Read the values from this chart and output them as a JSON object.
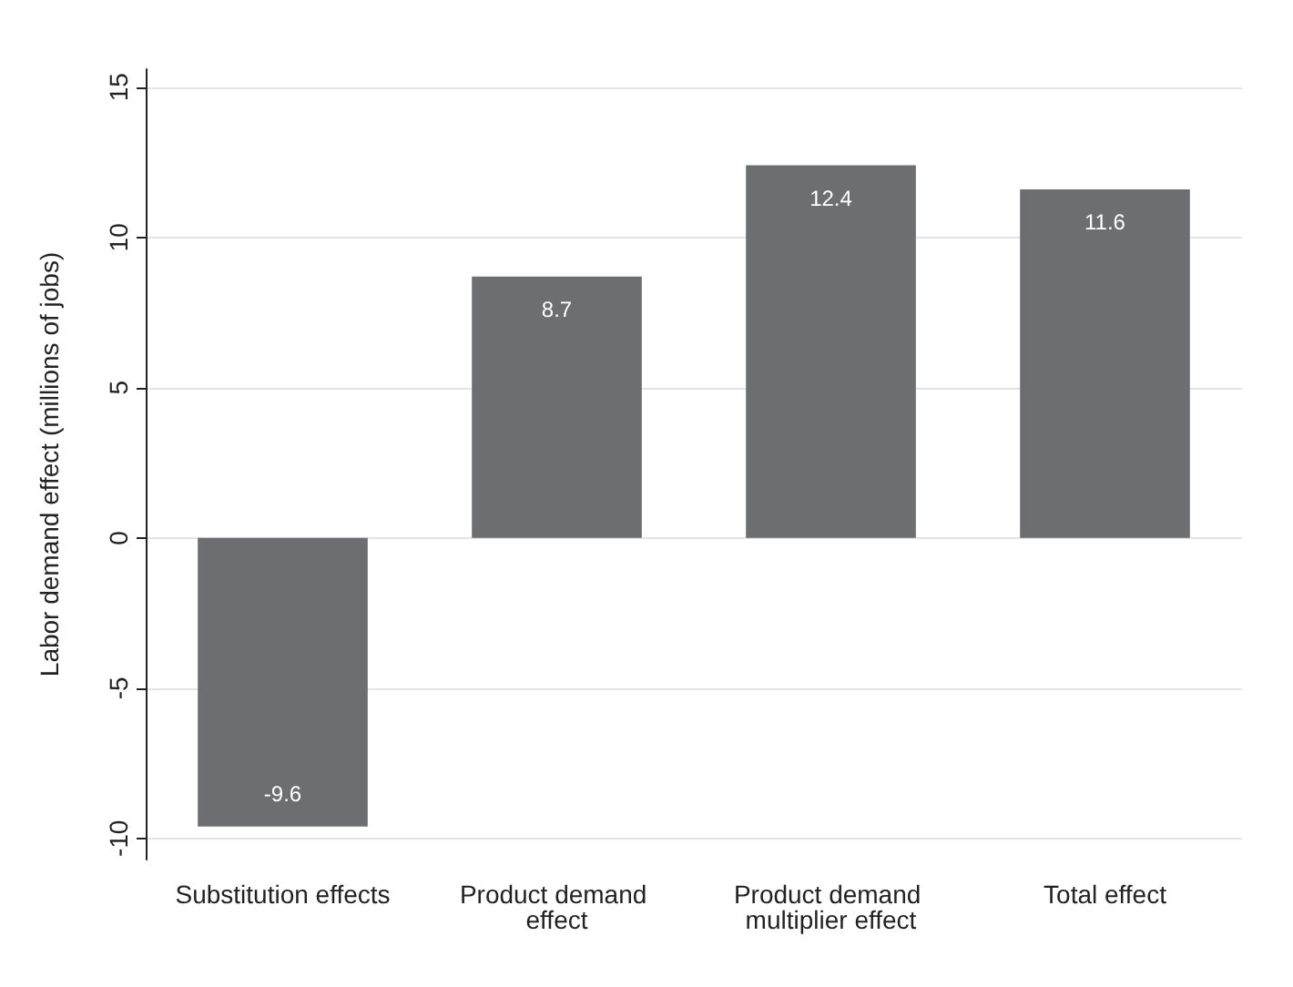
{
  "chart_data": {
    "type": "bar",
    "ylabel": "Labor demand effect (millions of jobs)",
    "categories": [
      "Substitution effects",
      "Product demand effect",
      "Product demand multiplier effect",
      "Total effect"
    ],
    "values": [
      -9.6,
      8.7,
      12.4,
      11.6
    ],
    "color": "#6d6e71",
    "ylim": [
      -10.7,
      15.6
    ],
    "yticks": [
      -10,
      -5,
      0,
      5,
      10,
      15
    ],
    "grid": "y",
    "data_labels": true
  }
}
